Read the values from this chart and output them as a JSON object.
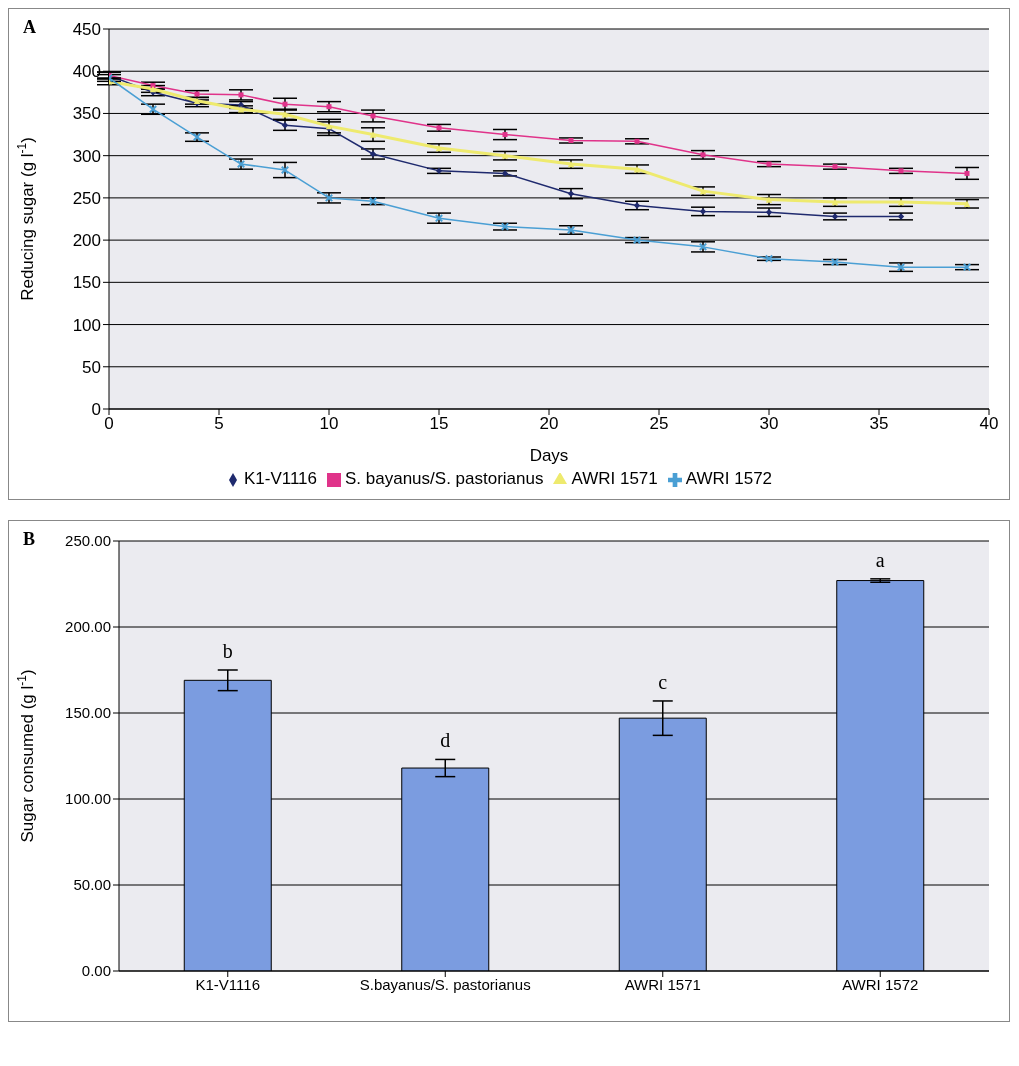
{
  "chart_data": [
    {
      "type": "line",
      "title": "A",
      "xlabel": "Days",
      "ylabel": "Reducing sugar (g l$^{-1}$)",
      "x": [
        0,
        2,
        4,
        6,
        8,
        10,
        12,
        15,
        18,
        21,
        24,
        27,
        30,
        33,
        36,
        39
      ],
      "xlim": [
        0,
        40
      ],
      "xticks": [
        0,
        5,
        10,
        15,
        20,
        25,
        30,
        35,
        40
      ],
      "ylim": [
        0,
        450
      ],
      "yticks": [
        0,
        50,
        100,
        150,
        200,
        250,
        300,
        350,
        400,
        450
      ],
      "grid": "y",
      "legend": "bottom",
      "series": [
        {
          "name": "K1-V1116",
          "color": "#1f2a6e",
          "marker": "diamond",
          "values": [
            395,
            375,
            362,
            360,
            336,
            332,
            302,
            282,
            279,
            255,
            241,
            234,
            233,
            228,
            228,
            null
          ],
          "errors": [
            4,
            4,
            4,
            4,
            6,
            8,
            6,
            3,
            3,
            6,
            5,
            5,
            5,
            4,
            4,
            null
          ]
        },
        {
          "name": "S. bayanus/S. pastorianus",
          "color": "#e0338a",
          "marker": "square",
          "values": [
            395,
            383,
            373,
            372,
            361,
            358,
            347,
            333,
            325,
            318,
            317,
            301,
            290,
            287,
            282,
            279
          ],
          "errors": [
            4,
            4,
            4,
            6,
            7,
            6,
            7,
            4,
            6,
            3,
            3,
            5,
            3,
            3,
            3,
            7
          ]
        },
        {
          "name": "AWRI 1571",
          "color": "#eeea6e",
          "marker": "triangle",
          "values": [
            388,
            379,
            365,
            355,
            349,
            335,
            325,
            309,
            300,
            290,
            284,
            258,
            248,
            245,
            245,
            243
          ],
          "errors": [
            4,
            4,
            4,
            4,
            6,
            8,
            8,
            5,
            5,
            5,
            5,
            5,
            6,
            5,
            5,
            5
          ]
        },
        {
          "name": "AWRI 1572",
          "color": "#4a9fd4",
          "marker": "cross",
          "values": [
            392,
            355,
            322,
            290,
            283,
            250,
            246,
            226,
            216,
            212,
            200,
            192,
            178,
            174,
            168,
            168
          ],
          "errors": [
            4,
            6,
            5,
            6,
            9,
            6,
            4,
            6,
            4,
            5,
            3,
            6,
            2,
            3,
            5,
            3
          ]
        }
      ]
    },
    {
      "type": "bar",
      "title": "B",
      "ylabel": "Sugar consumed (g l$^{-1}$)",
      "categories": [
        "K1-V1116",
        "S.bayanus/S. pastorianus",
        "AWRI 1571",
        "AWRI 1572"
      ],
      "ylim": [
        0,
        250
      ],
      "yticks": [
        {
          "value": 0,
          "label": "0.00"
        },
        {
          "value": 50,
          "label": "50.00"
        },
        {
          "value": 100,
          "label": "100.00"
        },
        {
          "value": 150,
          "label": "150.00"
        },
        {
          "value": 200,
          "label": "200.00"
        },
        {
          "value": 250,
          "label": "250.00"
        }
      ],
      "grid": "y",
      "series": [
        {
          "color": "#7b9ce0",
          "values": [
            169,
            118,
            147,
            227
          ],
          "errors": [
            6,
            5,
            10,
            1
          ]
        }
      ],
      "annotations": [
        "b",
        "d",
        "c",
        "a"
      ]
    }
  ]
}
